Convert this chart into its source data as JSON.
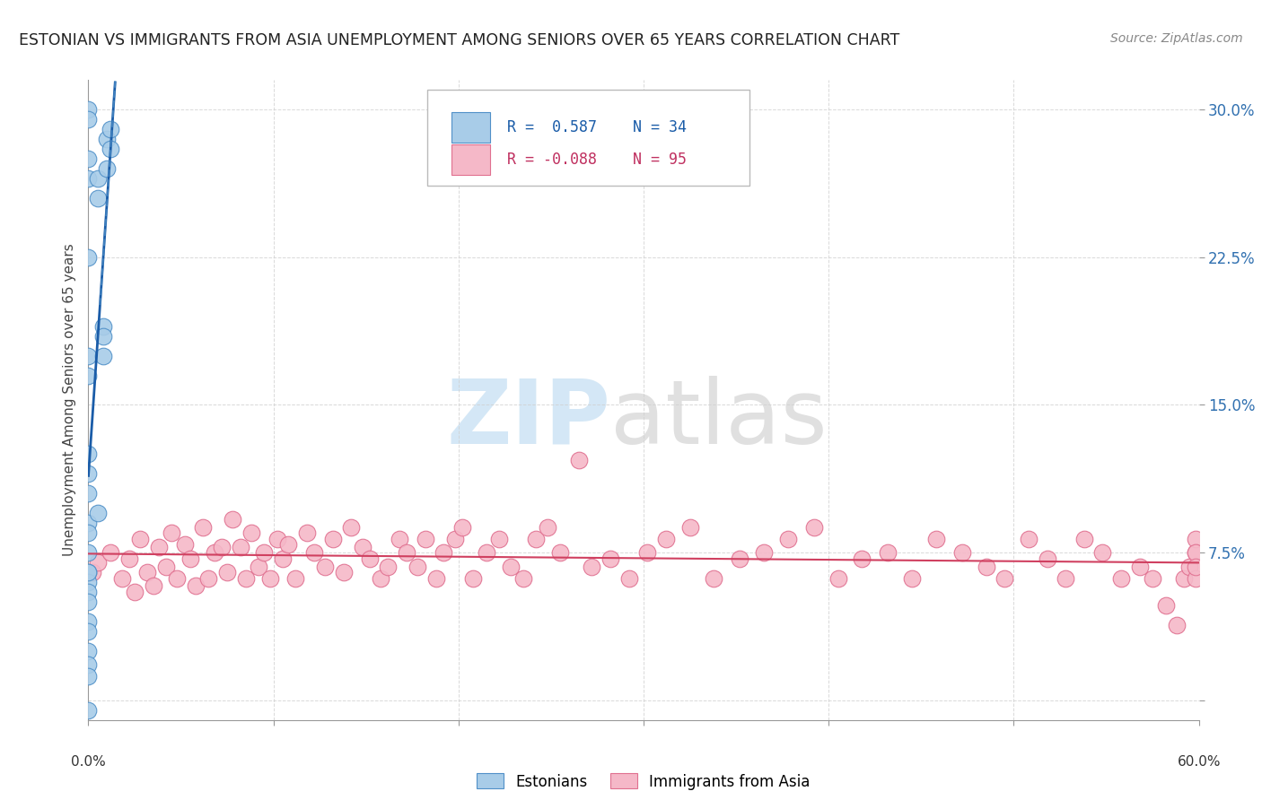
{
  "title": "ESTONIAN VS IMMIGRANTS FROM ASIA UNEMPLOYMENT AMONG SENIORS OVER 65 YEARS CORRELATION CHART",
  "source": "Source: ZipAtlas.com",
  "ylabel": "Unemployment Among Seniors over 65 years",
  "xlim": [
    0.0,
    0.6
  ],
  "ylim": [
    -0.01,
    0.315
  ],
  "yticks": [
    0.0,
    0.075,
    0.15,
    0.225,
    0.3
  ],
  "ytick_labels": [
    "",
    "7.5%",
    "15.0%",
    "22.5%",
    "30.0%"
  ],
  "xticks": [
    0.0,
    0.1,
    0.2,
    0.3,
    0.4,
    0.5,
    0.6
  ],
  "xtick_labels": [
    "0.0%",
    "",
    "",
    "",
    "",
    "",
    "60.0%"
  ],
  "blue_color": "#a8cce8",
  "blue_edge_color": "#5090c8",
  "blue_line_color": "#1a5ca8",
  "pink_color": "#f5b8c8",
  "pink_edge_color": "#e07090",
  "pink_line_color": "#d04060",
  "grid_color": "#d0d0d0",
  "background_color": "#ffffff",
  "blue_r": "0.587",
  "blue_n": "34",
  "pink_r": "-0.088",
  "pink_n": "95",
  "blue_scatter_x": [
    0.0,
    0.0,
    0.0,
    0.0,
    0.0,
    0.0,
    0.0,
    0.0,
    0.0,
    0.0,
    0.0,
    0.0,
    0.0,
    0.0,
    0.0,
    0.0,
    0.0,
    0.0,
    0.0,
    0.0,
    0.0,
    0.0,
    0.0,
    0.0,
    0.005,
    0.005,
    0.005,
    0.008,
    0.008,
    0.008,
    0.01,
    0.01,
    0.012,
    0.012
  ],
  "blue_scatter_y": [
    0.3,
    0.295,
    0.275,
    0.265,
    0.225,
    0.175,
    0.165,
    0.125,
    0.115,
    0.105,
    0.09,
    0.085,
    0.075,
    0.065,
    0.06,
    0.055,
    0.05,
    0.04,
    0.035,
    0.025,
    0.018,
    0.012,
    -0.005,
    0.065,
    0.265,
    0.255,
    0.095,
    0.19,
    0.185,
    0.175,
    0.285,
    0.27,
    0.29,
    0.28
  ],
  "pink_scatter_x": [
    0.002,
    0.005,
    0.012,
    0.018,
    0.022,
    0.025,
    0.028,
    0.032,
    0.035,
    0.038,
    0.042,
    0.045,
    0.048,
    0.052,
    0.055,
    0.058,
    0.062,
    0.065,
    0.068,
    0.072,
    0.075,
    0.078,
    0.082,
    0.085,
    0.088,
    0.092,
    0.095,
    0.098,
    0.102,
    0.105,
    0.108,
    0.112,
    0.118,
    0.122,
    0.128,
    0.132,
    0.138,
    0.142,
    0.148,
    0.152,
    0.158,
    0.162,
    0.168,
    0.172,
    0.178,
    0.182,
    0.188,
    0.192,
    0.198,
    0.202,
    0.208,
    0.215,
    0.222,
    0.228,
    0.235,
    0.242,
    0.248,
    0.255,
    0.265,
    0.272,
    0.282,
    0.292,
    0.302,
    0.312,
    0.325,
    0.338,
    0.352,
    0.365,
    0.378,
    0.392,
    0.405,
    0.418,
    0.432,
    0.445,
    0.458,
    0.472,
    0.485,
    0.495,
    0.508,
    0.518,
    0.528,
    0.538,
    0.548,
    0.558,
    0.568,
    0.575,
    0.582,
    0.588,
    0.592,
    0.595,
    0.598,
    0.598,
    0.598,
    0.598,
    0.598
  ],
  "pink_scatter_y": [
    0.065,
    0.07,
    0.075,
    0.062,
    0.072,
    0.055,
    0.082,
    0.065,
    0.058,
    0.078,
    0.068,
    0.085,
    0.062,
    0.079,
    0.072,
    0.058,
    0.088,
    0.062,
    0.075,
    0.078,
    0.065,
    0.092,
    0.078,
    0.062,
    0.085,
    0.068,
    0.075,
    0.062,
    0.082,
    0.072,
    0.079,
    0.062,
    0.085,
    0.075,
    0.068,
    0.082,
    0.065,
    0.088,
    0.078,
    0.072,
    0.062,
    0.068,
    0.082,
    0.075,
    0.068,
    0.082,
    0.062,
    0.075,
    0.082,
    0.088,
    0.062,
    0.075,
    0.082,
    0.068,
    0.062,
    0.082,
    0.088,
    0.075,
    0.122,
    0.068,
    0.072,
    0.062,
    0.075,
    0.082,
    0.088,
    0.062,
    0.072,
    0.075,
    0.082,
    0.088,
    0.062,
    0.072,
    0.075,
    0.062,
    0.082,
    0.075,
    0.068,
    0.062,
    0.082,
    0.072,
    0.062,
    0.082,
    0.075,
    0.062,
    0.068,
    0.062,
    0.048,
    0.038,
    0.062,
    0.068,
    0.075,
    0.062,
    0.082,
    0.075,
    0.068
  ]
}
